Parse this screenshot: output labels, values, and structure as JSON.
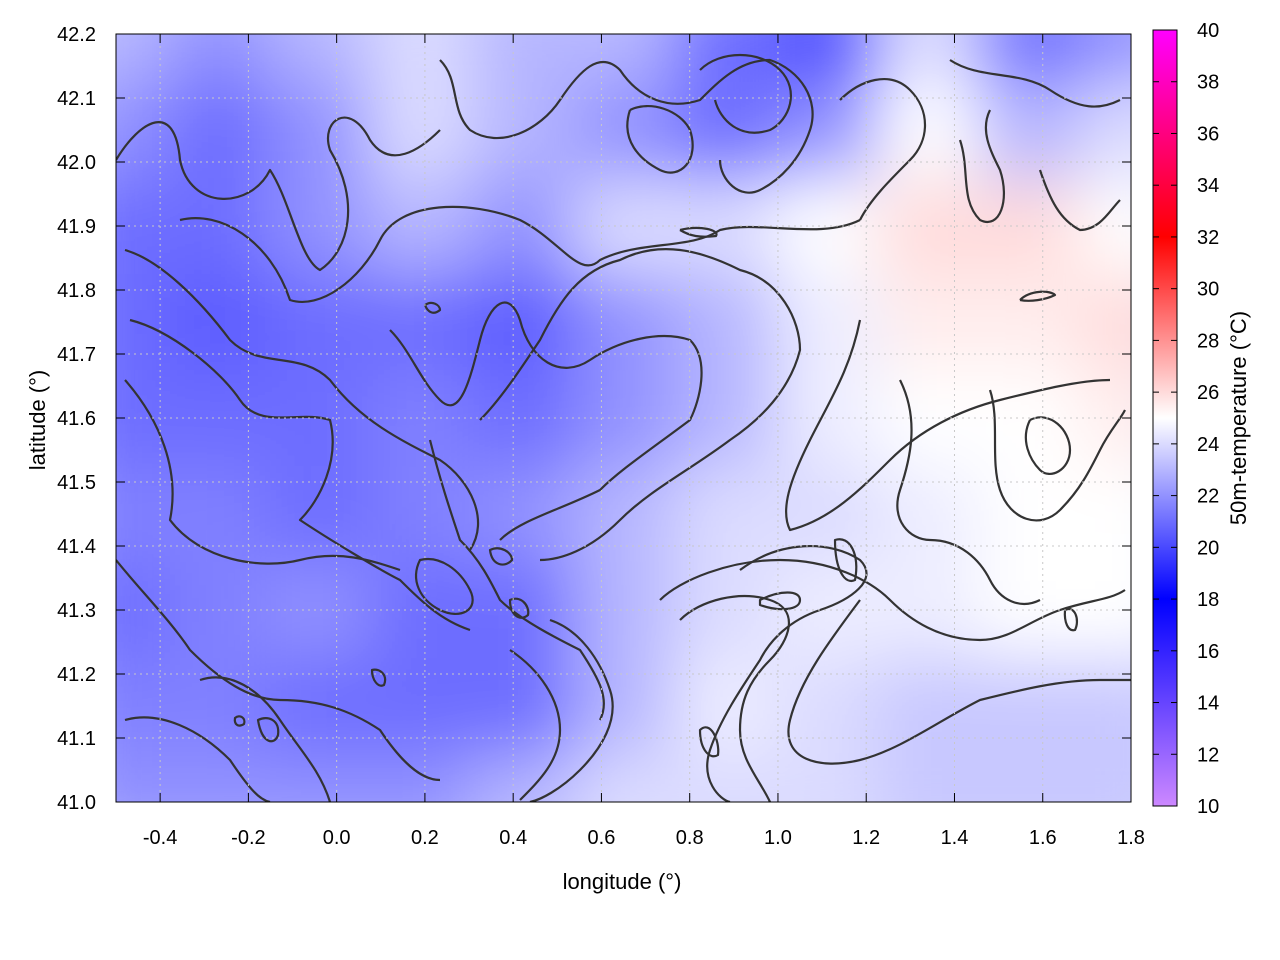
{
  "chart_data": {
    "type": "heatmap",
    "title": "",
    "xlabel": "longitude (°)",
    "ylabel": "latitude (°)",
    "colorbar_label": "50m-temperature (°C)",
    "xlim": [
      -0.5,
      1.8
    ],
    "ylim": [
      41.0,
      42.2
    ],
    "x_ticks": [
      -0.4,
      -0.2,
      0.0,
      0.2,
      0.4,
      0.6,
      0.8,
      1.0,
      1.2,
      1.4,
      1.6,
      1.8
    ],
    "x_tick_labels": [
      "-0.4",
      "-0.2",
      "0.0",
      "0.2",
      "0.4",
      "0.6",
      "0.8",
      "1.0",
      "1.2",
      "1.4",
      "1.6",
      "1.8"
    ],
    "y_ticks": [
      41.0,
      41.1,
      41.2,
      41.3,
      41.4,
      41.5,
      41.6,
      41.7,
      41.8,
      41.9,
      42.0,
      42.1,
      42.2
    ],
    "y_tick_labels": [
      "41.0",
      "41.1",
      "41.2",
      "41.3",
      "41.4",
      "41.5",
      "41.6",
      "41.7",
      "41.8",
      "41.9",
      "42.0",
      "42.1",
      "42.2"
    ],
    "colorbar_range": [
      10,
      40
    ],
    "colorbar_ticks": [
      10,
      12,
      14,
      16,
      18,
      20,
      22,
      24,
      26,
      28,
      30,
      32,
      34,
      36,
      38,
      40
    ],
    "colorbar_tick_labels": [
      "10",
      "12",
      "14",
      "16",
      "18",
      "20",
      "22",
      "24",
      "26",
      "28",
      "30",
      "32",
      "34",
      "36",
      "38",
      "40"
    ],
    "colormap": [
      {
        "value": 10,
        "color": "#cc88ff"
      },
      {
        "value": 18,
        "color": "#0000ff"
      },
      {
        "value": 25,
        "color": "#ffffff"
      },
      {
        "value": 32,
        "color": "#ff0000"
      },
      {
        "value": 40,
        "color": "#ff00ff"
      }
    ],
    "grid": true,
    "contour_color": "#333333",
    "field": {
      "lon": [
        -0.5,
        -0.27,
        -0.04,
        0.19,
        0.42,
        0.65,
        0.88,
        1.11,
        1.34,
        1.57,
        1.8
      ],
      "lat": [
        42.2,
        42.05,
        41.9,
        41.75,
        41.6,
        41.45,
        41.3,
        41.15,
        41.0
      ],
      "values": [
        [
          23,
          22,
          23,
          24,
          23,
          23,
          21,
          20,
          24,
          21,
          22
        ],
        [
          22,
          21,
          22,
          24,
          23,
          22,
          21,
          22,
          25,
          23,
          24
        ],
        [
          21,
          21,
          22,
          23,
          22,
          24,
          24,
          25,
          26,
          26,
          25
        ],
        [
          21,
          20.5,
          21,
          21,
          20.5,
          22,
          23,
          24.5,
          25.5,
          25.5,
          26
        ],
        [
          21,
          21,
          21,
          21.5,
          21,
          22,
          23,
          24.5,
          25,
          25,
          25.5
        ],
        [
          21.5,
          21.5,
          21,
          21.5,
          22,
          23,
          24,
          24,
          24.5,
          25,
          25
        ],
        [
          21,
          21.5,
          22,
          21,
          21,
          23,
          24,
          24.5,
          24.5,
          25,
          25
        ],
        [
          21.5,
          21.5,
          21,
          21,
          21,
          23,
          24.5,
          24,
          23.5,
          23.5,
          23.5
        ],
        [
          22,
          22,
          22,
          22,
          23,
          24,
          24,
          24,
          23.5,
          23.5,
          23.5
        ]
      ]
    }
  }
}
